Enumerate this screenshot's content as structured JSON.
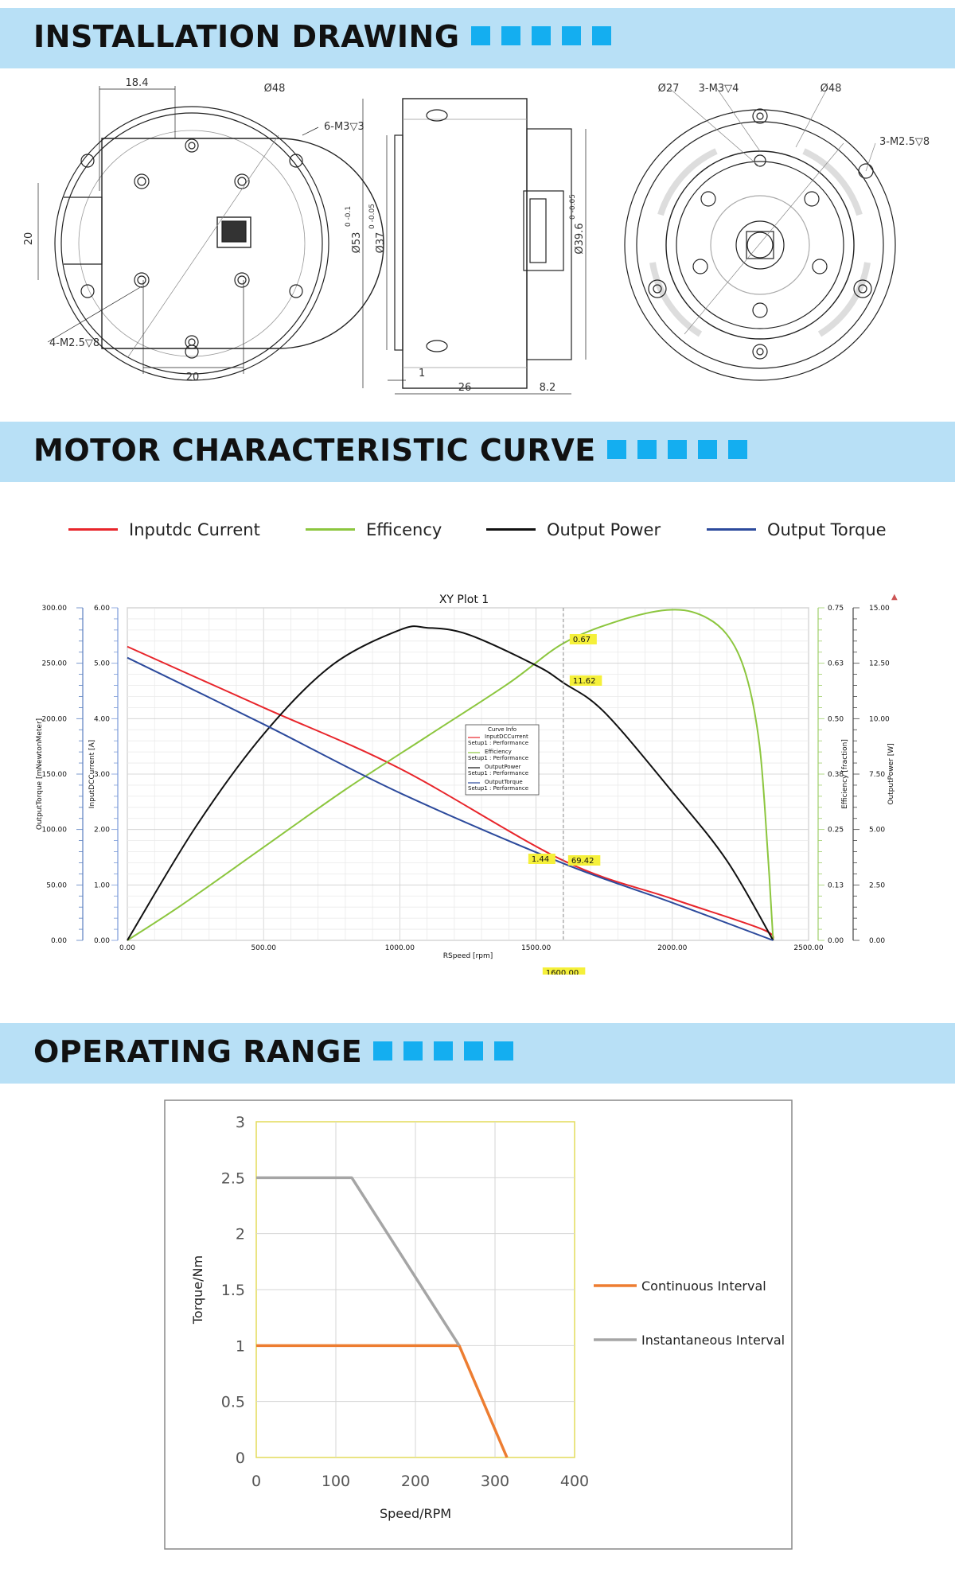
{
  "sections": {
    "installation": {
      "title": "INSTALLATION DRAWING"
    },
    "motor_curve": {
      "title": "MOTOR CHARACTERISTIC CURVE"
    },
    "operating": {
      "title": "OPERATING RANGE"
    }
  },
  "accent_color": "#14aef0",
  "band_color": "#b8e0f6",
  "drawing_labels": {
    "dim_18_4": "18.4",
    "dim_48a": "Ø48",
    "dim_6m3": "6-M3▽3",
    "dim_20v": "20",
    "dim_4m25": "4-M2.5▽8",
    "dim_20h": "20",
    "dim_53": "Ø53",
    "tol_53": "0 -0.1",
    "dim_37": "Ø37",
    "tol_37": "0 -0.05",
    "dim_39_6": "Ø39.6",
    "tol_39_6": "0 -0.05",
    "dim_1": "1",
    "dim_26": "26",
    "dim_8_2": "8.2",
    "dim_27": "Ø27",
    "dim_3m3": "3-M3▽4",
    "dim_48b": "Ø48",
    "dim_3m25": "3-M2.5▽8"
  },
  "top_legend": [
    {
      "label": "Inputdc Current",
      "color": "#e8252b"
    },
    {
      "label": "Efficency",
      "color": "#8cc63e"
    },
    {
      "label": "Output Power",
      "color": "#111111"
    },
    {
      "label": "Output Torque",
      "color": "#2c4a9c"
    }
  ],
  "xy_plot": {
    "title": "XY Plot 1",
    "xlabel": "RSpeed [rpm]",
    "x_ticks": [
      "0.00",
      "500.00",
      "1000.00",
      "1500.00",
      "2000.00",
      "2500.00"
    ],
    "y_torque_label": "OutputTorque [mNewtonMeter]",
    "y_torque_ticks": [
      "0.00",
      "50.00",
      "100.00",
      "150.00",
      "200.00",
      "250.00",
      "300.00"
    ],
    "y_current_label": "InputDCCurrent [A]",
    "y_current_ticks": [
      "0.00",
      "1.00",
      "2.00",
      "3.00",
      "4.00",
      "5.00",
      "6.00"
    ],
    "y_eff_label": "Efficiency [fraction]",
    "y_eff_ticks": [
      "0.00",
      "0.13",
      "0.25",
      "0.38",
      "0.50",
      "0.63",
      "0.75"
    ],
    "y_power_label": "OutputPower [W]",
    "y_power_ticks": [
      "0.00",
      "2.50",
      "5.00",
      "7.50",
      "10.00",
      "12.50",
      "15.00"
    ],
    "marker_x_label": "1600.00",
    "markers": {
      "eff": "0.67",
      "power": "11.62",
      "current": "1.44",
      "torque": "69.42"
    },
    "curve_info": {
      "title": "Curve Info",
      "rows": [
        [
          "InputDCCurrent",
          "Setup1 : Performance"
        ],
        [
          "Efficiency",
          "Setup1 : Performance"
        ],
        [
          "OutputPower",
          "Setup1 : Performance"
        ],
        [
          "OutputTorque",
          "Setup1 : Performance"
        ]
      ]
    }
  },
  "chart_data": [
    {
      "type": "line",
      "title": "XY Plot 1",
      "xlabel": "RSpeed [rpm]",
      "xlim": [
        0,
        2500
      ],
      "series": [
        {
          "name": "InputDCCurrent",
          "color": "#e8252b",
          "axis": "current",
          "ylim": [
            0,
            6
          ],
          "x": [
            0,
            500,
            1000,
            1600,
            2000,
            2330,
            2370
          ],
          "y": [
            5.3,
            4.2,
            3.1,
            1.44,
            0.75,
            0.2,
            0.0
          ]
        },
        {
          "name": "Efficiency",
          "color": "#8cc63e",
          "axis": "eff",
          "ylim": [
            0,
            0.75
          ],
          "x": [
            0,
            200,
            500,
            800,
            1100,
            1400,
            1600,
            1800,
            1980,
            2100,
            2200,
            2270,
            2320,
            2350,
            2370
          ],
          "y": [
            0.0,
            0.08,
            0.21,
            0.34,
            0.46,
            0.58,
            0.67,
            0.72,
            0.745,
            0.735,
            0.69,
            0.6,
            0.44,
            0.2,
            0.0
          ]
        },
        {
          "name": "OutputPower",
          "color": "#111111",
          "axis": "power",
          "ylim": [
            0,
            15
          ],
          "x": [
            0,
            250,
            500,
            750,
            1000,
            1100,
            1250,
            1500,
            1600,
            1750,
            2000,
            2200,
            2370
          ],
          "y": [
            0.0,
            5.1,
            9.3,
            12.4,
            14.0,
            14.1,
            13.8,
            12.4,
            11.62,
            10.3,
            6.7,
            3.6,
            0.0
          ]
        },
        {
          "name": "OutputTorque",
          "color": "#2c4a9c",
          "axis": "torque",
          "ylim": [
            0,
            300
          ],
          "x": [
            0,
            500,
            1000,
            1600,
            2000,
            2370
          ],
          "y": [
            255,
            195,
            133,
            69.42,
            34,
            0
          ]
        }
      ]
    },
    {
      "type": "line",
      "xlabel": "Speed/RPM",
      "ylabel": "Torque/Nm",
      "xlim": [
        0,
        400
      ],
      "ylim": [
        0,
        3
      ],
      "x_ticks": [
        "0",
        "100",
        "200",
        "300",
        "400"
      ],
      "y_ticks": [
        "0",
        "0.5",
        "1",
        "1.5",
        "2",
        "2.5",
        "3"
      ],
      "series": [
        {
          "name": "Continuous Interval",
          "color": "#ed7d31",
          "x": [
            0,
            255,
            315
          ],
          "y": [
            1,
            1,
            0
          ]
        },
        {
          "name": "Instantaneous Interval",
          "color": "#a5a5a5",
          "x": [
            0,
            120,
            255
          ],
          "y": [
            2.5,
            2.5,
            1
          ]
        }
      ]
    }
  ]
}
